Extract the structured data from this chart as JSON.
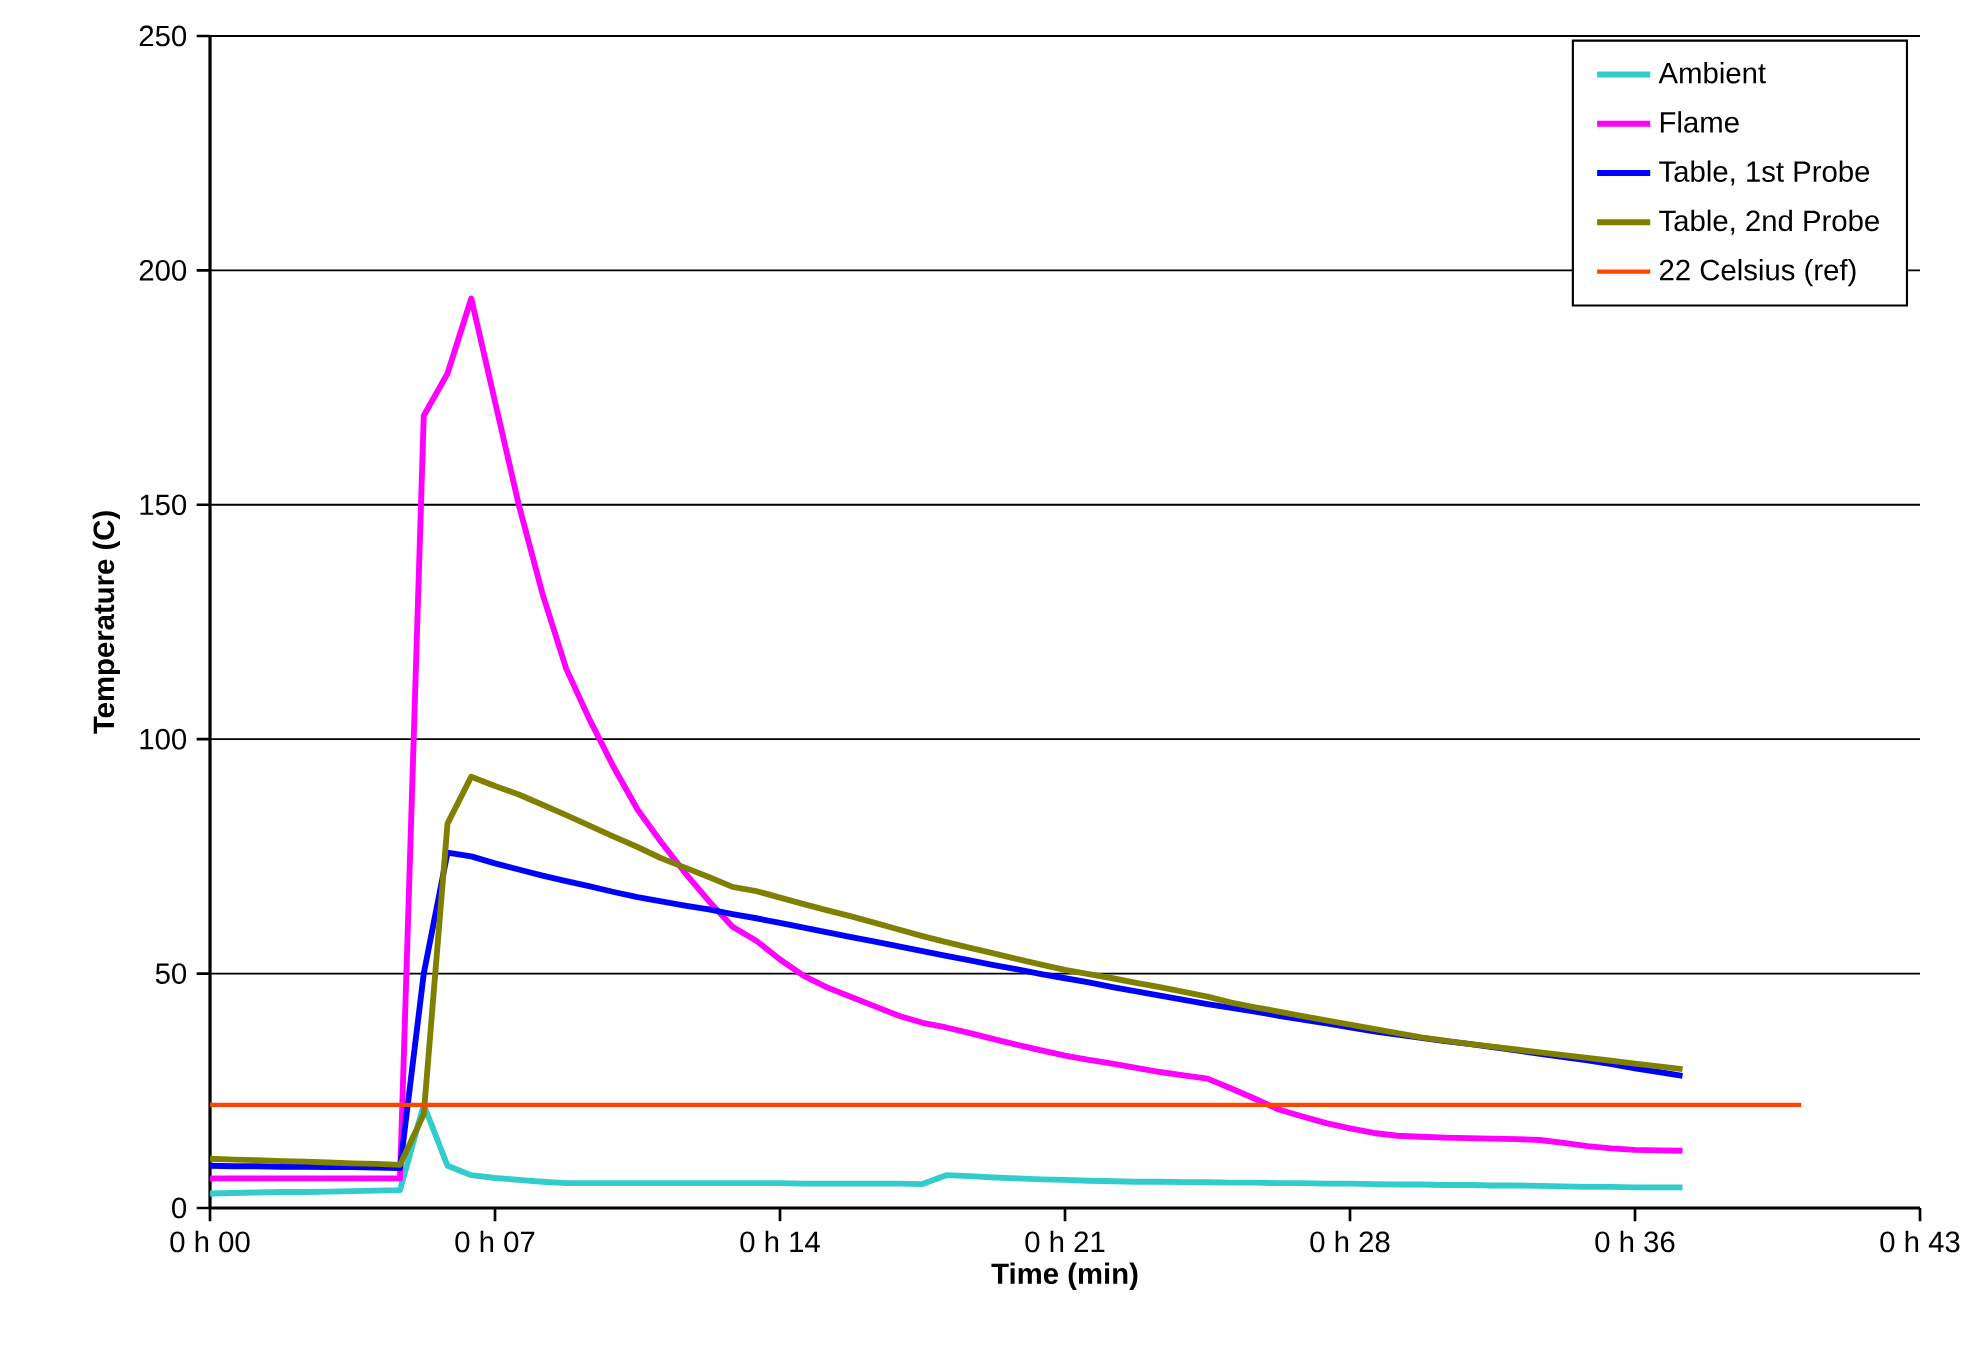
{
  "chart_data": {
    "type": "line",
    "xlabel": "Time (min)",
    "ylabel": "Temperature (C)",
    "categories": [
      "0 h 00",
      null,
      null,
      null,
      null,
      null,
      null,
      null,
      null,
      null,
      null,
      null,
      "0 h 07",
      null,
      null,
      null,
      null,
      null,
      null,
      null,
      null,
      null,
      null,
      null,
      "0 h 14",
      null,
      null,
      null,
      null,
      null,
      null,
      null,
      null,
      null,
      null,
      null,
      "0 h 21",
      null,
      null,
      null,
      null,
      null,
      null,
      null,
      null,
      null,
      null,
      null,
      "0 h 28",
      null,
      null,
      null,
      null,
      null,
      null,
      null,
      null,
      null,
      null,
      null,
      "0 h 36",
      null,
      null,
      null,
      null,
      null,
      null,
      null,
      null,
      null,
      null,
      null,
      "0 h 43"
    ],
    "ylim": [
      0,
      250
    ],
    "yticks": [
      0,
      50,
      100,
      150,
      200,
      250
    ],
    "grid": "y",
    "legend": "top right",
    "marker": "none",
    "line_style": "solid",
    "series": [
      {
        "name": "Ambient",
        "color": "#33cccc",
        "values": [
          3.1,
          3.2,
          3.3,
          3.4,
          3.4,
          3.5,
          3.6,
          3.7,
          3.8,
          22,
          9,
          7,
          6.4,
          6,
          5.6,
          5.3,
          5.3,
          5.3,
          5.3,
          5.3,
          5.3,
          5.3,
          5.3,
          5.3,
          5.3,
          5.2,
          5.2,
          5.2,
          5.2,
          5.2,
          5.1,
          7,
          6.8,
          6.5,
          6.3,
          6.1,
          6,
          5.8,
          5.7,
          5.6,
          5.6,
          5.5,
          5.5,
          5.4,
          5.4,
          5.3,
          5.3,
          5.2,
          5.2,
          5.1,
          5.0,
          5.0,
          4.9,
          4.9,
          4.8,
          4.8,
          4.7,
          4.6,
          4.5,
          4.5,
          4.4,
          4.4,
          4.4,
          null,
          null,
          null,
          null,
          null,
          null,
          null,
          null,
          null,
          null
        ]
      },
      {
        "name": "Flame",
        "color": "#ff00ff",
        "values": [
          6.3,
          6.3,
          6.3,
          6.3,
          6.3,
          6.3,
          6.3,
          6.3,
          6.3,
          169,
          178,
          194,
          172,
          150,
          131,
          115,
          104,
          94,
          85,
          78,
          71.5,
          65.5,
          60,
          57,
          53,
          49.5,
          47,
          45,
          43,
          41,
          39.5,
          38.5,
          37.3,
          36,
          34.8,
          33.6,
          32.5,
          31.6,
          30.8,
          29.9,
          29,
          28.3,
          27.6,
          25.5,
          23.3,
          21,
          19.5,
          18.1,
          17,
          16,
          15.4,
          15.2,
          15,
          14.9,
          14.8,
          14.7,
          14.5,
          13.9,
          13.2,
          12.7,
          12.4,
          12.3,
          12.2,
          null,
          null,
          null,
          null,
          null,
          null,
          null,
          null,
          null,
          null
        ]
      },
      {
        "name": "Table, 1st Probe",
        "color": "#0000ff",
        "values": [
          9,
          8.9,
          8.9,
          8.8,
          8.8,
          8.7,
          8.7,
          8.6,
          8.5,
          50,
          75.8,
          75,
          73.5,
          72.2,
          70.9,
          69.7,
          68.6,
          67.4,
          66.3,
          65.4,
          64.5,
          63.7,
          62.7,
          61.8,
          60.8,
          59.8,
          58.8,
          57.8,
          56.8,
          55.8,
          54.8,
          53.8,
          52.8,
          51.8,
          50.9,
          49.9,
          49.0,
          48.1,
          47.1,
          46.2,
          45.3,
          44.4,
          43.5,
          42.7,
          41.9,
          41.0,
          40.2,
          39.4,
          38.5,
          37.7,
          37.0,
          36.3,
          35.6,
          35.0,
          34.3,
          33.6,
          32.9,
          32.2,
          31.5,
          30.7,
          29.8,
          29.0,
          28.2,
          null,
          null,
          null,
          null,
          null,
          null,
          null,
          null,
          null,
          null
        ]
      },
      {
        "name": "Table, 2nd Probe",
        "color": "#808000",
        "values": [
          10.5,
          10.3,
          10.2,
          10,
          9.9,
          9.7,
          9.5,
          9.4,
          9.2,
          20,
          82,
          92,
          90,
          88.2,
          86,
          83.8,
          81.5,
          79.2,
          77,
          74.6,
          72.6,
          70.6,
          68.5,
          67.6,
          66.2,
          64.8,
          63.5,
          62.2,
          60.8,
          59.4,
          58,
          56.7,
          55.5,
          54.3,
          53.1,
          51.9,
          50.8,
          49.9,
          49,
          48,
          47.1,
          46.1,
          45.1,
          43.8,
          42.8,
          41.9,
          40.9,
          40,
          39.1,
          38.2,
          37.3,
          36.4,
          35.7,
          35,
          34.4,
          33.8,
          33.2,
          32.6,
          32,
          31.4,
          30.8,
          30.2,
          29.6,
          null,
          null,
          null,
          null,
          null,
          null,
          null,
          null,
          null,
          null
        ]
      },
      {
        "name": "22 Celsius (ref)",
        "color": "#ff4500",
        "values": [
          22,
          22,
          22,
          22,
          22,
          22,
          22,
          22,
          22,
          22,
          22,
          22,
          22,
          22,
          22,
          22,
          22,
          22,
          22,
          22,
          22,
          22,
          22,
          22,
          22,
          22,
          22,
          22,
          22,
          22,
          22,
          22,
          22,
          22,
          22,
          22,
          22,
          22,
          22,
          22,
          22,
          22,
          22,
          22,
          22,
          22,
          22,
          22,
          22,
          22,
          22,
          22,
          22,
          22,
          22,
          22,
          22,
          22,
          22,
          22,
          22,
          22,
          22,
          22,
          22,
          22,
          22,
          22,
          null,
          null,
          null,
          null,
          null
        ]
      }
    ]
  }
}
